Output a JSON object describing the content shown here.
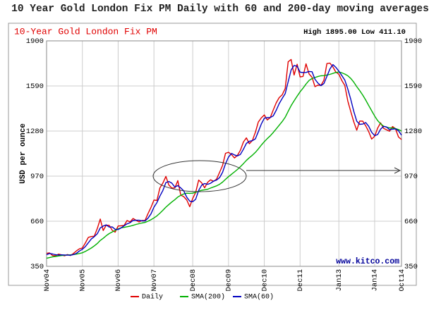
{
  "chart_data": {
    "type": "line",
    "title": "10 Year Gold London Fix PM Daily with 60 and 200-day moving averages",
    "subtitle": "10-Year Gold London Fix PM",
    "high_low": "High 1895.00 Low 411.10",
    "y_label": "USD per ounce",
    "source": "www.kitco.com",
    "grid": true,
    "x": [
      "2004-11",
      "2004-12",
      "2005-01",
      "2005-02",
      "2005-03",
      "2005-04",
      "2005-05",
      "2005-06",
      "2005-07",
      "2005-08",
      "2005-09",
      "2005-10",
      "2005-11",
      "2005-12",
      "2006-01",
      "2006-02",
      "2006-03",
      "2006-04",
      "2006-05",
      "2006-06",
      "2006-07",
      "2006-08",
      "2006-09",
      "2006-10",
      "2006-11",
      "2006-12",
      "2007-01",
      "2007-02",
      "2007-03",
      "2007-04",
      "2007-05",
      "2007-06",
      "2007-07",
      "2007-08",
      "2007-09",
      "2007-10",
      "2007-11",
      "2007-12",
      "2008-01",
      "2008-02",
      "2008-03",
      "2008-04",
      "2008-05",
      "2008-06",
      "2008-07",
      "2008-08",
      "2008-09",
      "2008-10",
      "2008-11",
      "2008-12",
      "2009-01",
      "2009-02",
      "2009-03",
      "2009-04",
      "2009-05",
      "2009-06",
      "2009-07",
      "2009-08",
      "2009-09",
      "2009-10",
      "2009-11",
      "2009-12",
      "2010-01",
      "2010-02",
      "2010-03",
      "2010-04",
      "2010-05",
      "2010-06",
      "2010-07",
      "2010-08",
      "2010-09",
      "2010-10",
      "2010-11",
      "2010-12",
      "2011-01",
      "2011-02",
      "2011-03",
      "2011-04",
      "2011-05",
      "2011-06",
      "2011-07",
      "2011-08",
      "2011-09",
      "2011-10",
      "2011-11",
      "2011-12",
      "2012-01",
      "2012-02",
      "2012-03",
      "2012-04",
      "2012-05",
      "2012-06",
      "2012-07",
      "2012-08",
      "2012-09",
      "2012-10",
      "2012-11",
      "2012-12",
      "2013-01",
      "2013-02",
      "2013-03",
      "2013-04",
      "2013-05",
      "2013-06",
      "2013-07",
      "2013-08",
      "2013-09",
      "2013-10",
      "2013-11",
      "2013-12",
      "2014-01",
      "2014-02",
      "2014-03",
      "2014-04",
      "2014-05",
      "2014-06",
      "2014-07",
      "2014-08",
      "2014-09",
      "2014-10"
    ],
    "series": [
      {
        "name": "Daily",
        "color": "#e00000",
        "values": [
          439,
          442,
          424,
          423,
          434,
          429,
          422,
          431,
          424,
          438,
          456,
          470,
          476,
          510,
          549,
          555,
          557,
          610,
          675,
          596,
          633,
          632,
          598,
          585,
          627,
          629,
          631,
          665,
          655,
          679,
          667,
          655,
          665,
          665,
          712,
          754,
          806,
          803,
          889,
          922,
          968,
          909,
          888,
          889,
          939,
          839,
          829,
          806,
          760,
          816,
          858,
          943,
          924,
          890,
          928,
          945,
          934,
          949,
          996,
          1043,
          1127,
          1134,
          1118,
          1095,
          1113,
          1148,
          1205,
          1233,
          1193,
          1215,
          1271,
          1342,
          1370,
          1391,
          1356,
          1372,
          1424,
          1474,
          1510,
          1529,
          1572,
          1756,
          1772,
          1665,
          1739,
          1652,
          1656,
          1742,
          1673,
          1650,
          1585,
          1596,
          1594,
          1630,
          1744,
          1747,
          1721,
          1685,
          1671,
          1627,
          1593,
          1487,
          1414,
          1343,
          1286,
          1349,
          1348,
          1316,
          1276,
          1225,
          1244,
          1300,
          1336,
          1299,
          1288,
          1279,
          1311,
          1296,
          1239,
          1222
        ]
      },
      {
        "name": "SMA(200)",
        "color": "#00b000",
        "values": [
          405,
          410,
          415,
          418,
          421,
          424,
          426,
          428,
          429,
          431,
          434,
          438,
          443,
          452,
          464,
          476,
          490,
          507,
          528,
          543,
          560,
          575,
          586,
          597,
          607,
          615,
          618,
          622,
          626,
          632,
          638,
          643,
          648,
          652,
          660,
          670,
          683,
          697,
          715,
          735,
          757,
          775,
          792,
          808,
          826,
          838,
          848,
          853,
          852,
          853,
          859,
          866,
          873,
          876,
          880,
          888,
          896,
          903,
          914,
          929,
          948,
          966,
          983,
          999,
          1016,
          1035,
          1056,
          1078,
          1097,
          1114,
          1133,
          1157,
          1183,
          1207,
          1228,
          1247,
          1270,
          1295,
          1320,
          1345,
          1375,
          1415,
          1455,
          1488,
          1520,
          1550,
          1575,
          1603,
          1628,
          1641,
          1648,
          1655,
          1660,
          1661,
          1665,
          1670,
          1676,
          1683,
          1686,
          1680,
          1672,
          1660,
          1642,
          1616,
          1585,
          1558,
          1527,
          1493,
          1456,
          1420,
          1383,
          1352,
          1330,
          1314,
          1306,
          1302,
          1301,
          1297,
          1290,
          1280
        ]
      },
      {
        "name": "SMA(60)",
        "color": "#0000c0",
        "values": [
          430,
          438,
          435,
          430,
          427,
          429,
          428,
          427,
          426,
          431,
          439,
          455,
          467,
          485,
          512,
          538,
          554,
          574,
          614,
          627,
          635,
          620,
          621,
          605,
          603,
          614,
          629,
          642,
          650,
          666,
          667,
          667,
          662,
          662,
          681,
          710,
          757,
          788,
          833,
          871,
          926,
          933,
          922,
          895,
          905,
          889,
          869,
          825,
          798,
          794,
          811,
          872,
          908,
          919,
          914,
          921,
          936,
          943,
          960,
          996,
          1055,
          1101,
          1126,
          1116,
          1109,
          1119,
          1155,
          1195,
          1210,
          1214,
          1226,
          1276,
          1328,
          1368,
          1372,
          1373,
          1384,
          1423,
          1469,
          1504,
          1537,
          1619,
          1700,
          1731,
          1725,
          1685,
          1682,
          1683,
          1690,
          1688,
          1636,
          1610,
          1592,
          1607,
          1656,
          1707,
          1737,
          1718,
          1692,
          1661,
          1630,
          1569,
          1498,
          1415,
          1348,
          1326,
          1328,
          1338,
          1313,
          1272,
          1248,
          1256,
          1293,
          1312,
          1308,
          1289,
          1293,
          1295,
          1282,
          1252
        ]
      }
    ],
    "ylim": [
      350,
      1900
    ],
    "yticks": [
      350,
      660,
      970,
      1280,
      1590,
      1900
    ],
    "xticks": [
      {
        "value": "2004-11",
        "label": "Nov04"
      },
      {
        "value": "2005-11",
        "label": "Nov05"
      },
      {
        "value": "2006-11",
        "label": "Nov06"
      },
      {
        "value": "2007-11",
        "label": "Nov07"
      },
      {
        "value": "2008-12",
        "label": "Dec08"
      },
      {
        "value": "2009-12",
        "label": "Dec09"
      },
      {
        "value": "2010-12",
        "label": "Dec10"
      },
      {
        "value": "2011-12",
        "label": "Dec11"
      },
      {
        "value": "2013-01",
        "label": "Jan13"
      },
      {
        "value": "2014-01",
        "label": "Jan14"
      },
      {
        "value": "2014-10",
        "label": "Oct14"
      }
    ]
  }
}
